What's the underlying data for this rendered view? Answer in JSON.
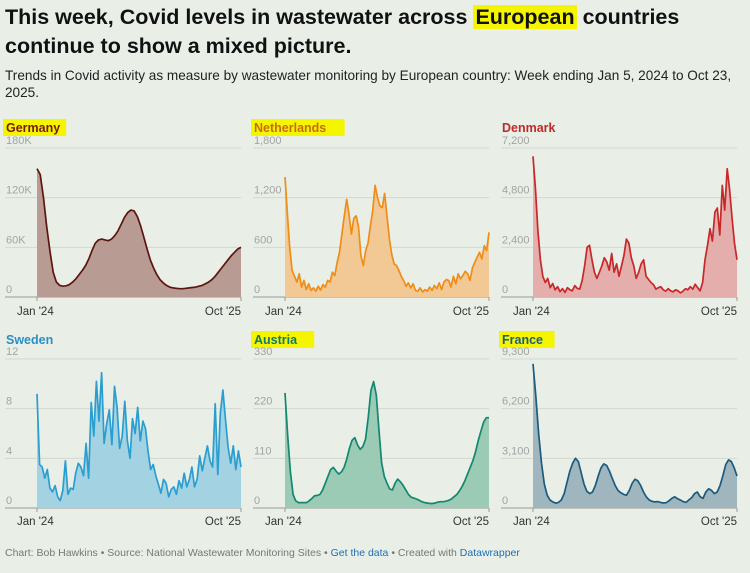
{
  "headline": {
    "before": "This week, Covid levels in wastewater across ",
    "highlight": "European",
    "after": " countries continue to show a mixed picture."
  },
  "subtitle": "Trends in Covid activity as measure by wastewater monitoring by European country: Week ending Jan 5, 2024 to Oct 23, 2025.",
  "x_range": {
    "start_label": "Jan '24",
    "end_label": "Oct '25"
  },
  "footer": {
    "credit": "Chart: Bob Hawkins • Source: National Wastewater Monitoring Sites • ",
    "get_data": "Get the data",
    "created": " • Created with ",
    "tool": "Datawrapper"
  },
  "chart_data": [
    {
      "type": "area",
      "title": "Germany",
      "title_highlighted": true,
      "title_color": "#7a1a12",
      "line_color": "#5e1510",
      "fill_color": "#b89b93",
      "ylim": [
        0,
        180000
      ],
      "yticks": [
        {
          "v": 0,
          "label": "0"
        },
        {
          "v": 60000,
          "label": "60K"
        },
        {
          "v": 120000,
          "label": "120K"
        },
        {
          "v": 180000,
          "label": "180K"
        }
      ],
      "values": [
        155000,
        148000,
        120000,
        85000,
        55000,
        30000,
        18000,
        14000,
        13000,
        13500,
        15000,
        18000,
        22000,
        27000,
        32000,
        38000,
        46000,
        56000,
        65000,
        69000,
        70000,
        69000,
        68000,
        70000,
        74000,
        80000,
        88000,
        96000,
        102000,
        105000,
        104000,
        97000,
        86000,
        72000,
        58000,
        45000,
        35000,
        27000,
        21000,
        17000,
        14000,
        12000,
        11000,
        10500,
        10000,
        10000,
        10500,
        11000,
        11500,
        12000,
        13000,
        14000,
        16000,
        18000,
        21000,
        25000,
        30000,
        35000,
        40000,
        45000,
        50000,
        54000,
        58000,
        60000
      ]
    },
    {
      "type": "area",
      "title": "Netherlands",
      "title_highlighted": true,
      "title_color": "#c96d0c",
      "line_color": "#f08c18",
      "fill_color": "#f2c994",
      "ylim": [
        0,
        1800
      ],
      "yticks": [
        {
          "v": 0,
          "label": "0"
        },
        {
          "v": 600,
          "label": "600"
        },
        {
          "v": 1200,
          "label": "1,200"
        },
        {
          "v": 1800,
          "label": "1,800"
        }
      ],
      "values": [
        1450,
        1000,
        600,
        320,
        250,
        180,
        280,
        120,
        200,
        90,
        160,
        80,
        110,
        70,
        130,
        85,
        150,
        120,
        200,
        180,
        300,
        260,
        420,
        550,
        760,
        980,
        1180,
        1000,
        760,
        950,
        980,
        850,
        500,
        380,
        560,
        650,
        860,
        1050,
        1350,
        1200,
        1100,
        1080,
        1250,
        980,
        700,
        520,
        400,
        380,
        320,
        250,
        200,
        130,
        170,
        110,
        160,
        80,
        70,
        110,
        60,
        90,
        70,
        120,
        80,
        140,
        100,
        170,
        90,
        180,
        210,
        200,
        120,
        250,
        160,
        280,
        220,
        260,
        310,
        280,
        200,
        350,
        420,
        480,
        540,
        460,
        620,
        560,
        780
      ]
    },
    {
      "type": "area",
      "title": "Denmark",
      "title_highlighted": false,
      "title_color": "#c0292a",
      "line_color": "#c8282a",
      "fill_color": "#e3aeab",
      "ylim": [
        0,
        7200
      ],
      "yticks": [
        {
          "v": 0,
          "label": "0"
        },
        {
          "v": 2400,
          "label": "2,400"
        },
        {
          "v": 4800,
          "label": "4,800"
        },
        {
          "v": 7200,
          "label": "7,200"
        }
      ],
      "values": [
        6800,
        5200,
        3200,
        1800,
        1000,
        700,
        900,
        450,
        650,
        350,
        500,
        260,
        400,
        220,
        450,
        350,
        300,
        550,
        420,
        380,
        800,
        1500,
        2400,
        2500,
        1800,
        1200,
        900,
        1200,
        1500,
        1900,
        1700,
        1300,
        2100,
        1200,
        1600,
        1000,
        1500,
        2000,
        2800,
        2600,
        1900,
        1500,
        900,
        1200,
        1600,
        1800,
        1000,
        850,
        700,
        600,
        380,
        450,
        500,
        350,
        280,
        400,
        300,
        250,
        350,
        300,
        200,
        280,
        400,
        350,
        500,
        380,
        620,
        450,
        300,
        700,
        1800,
        2500,
        3300,
        2700,
        4100,
        4300,
        3000,
        5400,
        4200,
        6200,
        5200,
        3800,
        2600,
        1800
      ]
    },
    {
      "type": "area",
      "title": "Sweden",
      "title_highlighted": false,
      "title_color": "#2a8fc4",
      "line_color": "#2a9ed0",
      "fill_color": "#a3d3e2",
      "ylim": [
        0,
        12
      ],
      "yticks": [
        {
          "v": 0,
          "label": "0"
        },
        {
          "v": 4,
          "label": "4"
        },
        {
          "v": 8,
          "label": "8"
        },
        {
          "v": 12,
          "label": "12"
        }
      ],
      "values": [
        9.2,
        3.5,
        3.3,
        2.4,
        3.1,
        1.6,
        1.3,
        1.8,
        0.9,
        0.6,
        1.4,
        3.8,
        1.1,
        1.6,
        1.5,
        2.8,
        3.6,
        3.3,
        2.6,
        5.2,
        2.4,
        8.5,
        5.8,
        10.2,
        7.0,
        10.9,
        5.2,
        6.8,
        7.9,
        5.1,
        9.8,
        8.1,
        4.8,
        5.8,
        8.6,
        5.4,
        4.0,
        7.2,
        6.0,
        8.1,
        5.4,
        7.0,
        6.4,
        4.6,
        3.1,
        3.5,
        2.6,
        1.9,
        1.2,
        2.3,
        2.0,
        0.9,
        1.5,
        1.7,
        1.1,
        2.2,
        1.6,
        2.8,
        1.7,
        2.3,
        3.3,
        1.7,
        2.3,
        4.2,
        3.0,
        4.0,
        5.0,
        3.8,
        3.3,
        8.4,
        2.7,
        7.6,
        9.5,
        7.1,
        4.9,
        3.6,
        5.0,
        3.1,
        4.6,
        3.3
      ]
    },
    {
      "type": "area",
      "title": "Austria",
      "title_highlighted": true,
      "title_color": "#0f7a6a",
      "line_color": "#13876f",
      "fill_color": "#9bcab5",
      "ylim": [
        0,
        330
      ],
      "yticks": [
        {
          "v": 0,
          "label": "0"
        },
        {
          "v": 110,
          "label": "110"
        },
        {
          "v": 220,
          "label": "220"
        },
        {
          "v": 330,
          "label": "330"
        }
      ],
      "values": [
        255,
        160,
        80,
        30,
        16,
        12,
        12,
        12,
        12,
        16,
        21,
        27,
        28,
        30,
        40,
        55,
        70,
        85,
        90,
        82,
        75,
        80,
        90,
        108,
        132,
        150,
        156,
        140,
        130,
        136,
        152,
        200,
        260,
        280,
        250,
        175,
        100,
        70,
        55,
        42,
        40,
        55,
        64,
        58,
        50,
        40,
        30,
        24,
        22,
        20,
        17,
        14,
        12,
        11,
        10,
        10,
        11,
        13,
        14,
        14,
        15,
        17,
        20,
        25,
        30,
        38,
        48,
        60,
        75,
        90,
        105,
        125,
        150,
        170,
        190,
        200,
        200
      ]
    },
    {
      "type": "area",
      "title": "France",
      "title_highlighted": true,
      "title_color": "#1b5d80",
      "line_color": "#1c5b7d",
      "fill_color": "#9fb6bf",
      "ylim": [
        0,
        9300
      ],
      "yticks": [
        {
          "v": 0,
          "label": "0"
        },
        {
          "v": 3100,
          "label": "3,100"
        },
        {
          "v": 6200,
          "label": "6,200"
        },
        {
          "v": 9300,
          "label": "9,300"
        }
      ],
      "values": [
        9000,
        7000,
        4600,
        2800,
        1500,
        800,
        500,
        380,
        300,
        350,
        500,
        900,
        1600,
        2300,
        2800,
        3100,
        2900,
        2200,
        1500,
        1050,
        900,
        1000,
        1400,
        2000,
        2500,
        2750,
        2650,
        2300,
        1850,
        1400,
        1100,
        950,
        850,
        800,
        1100,
        1550,
        1800,
        1700,
        1400,
        1000,
        700,
        500,
        420,
        380,
        400,
        350,
        310,
        330,
        450,
        600,
        700,
        580,
        500,
        400,
        350,
        500,
        650,
        900,
        1000,
        700,
        600,
        1000,
        1200,
        1100,
        900,
        1000,
        1400,
        2000,
        2700,
        3000,
        2900,
        2500,
        2000
      ]
    }
  ]
}
